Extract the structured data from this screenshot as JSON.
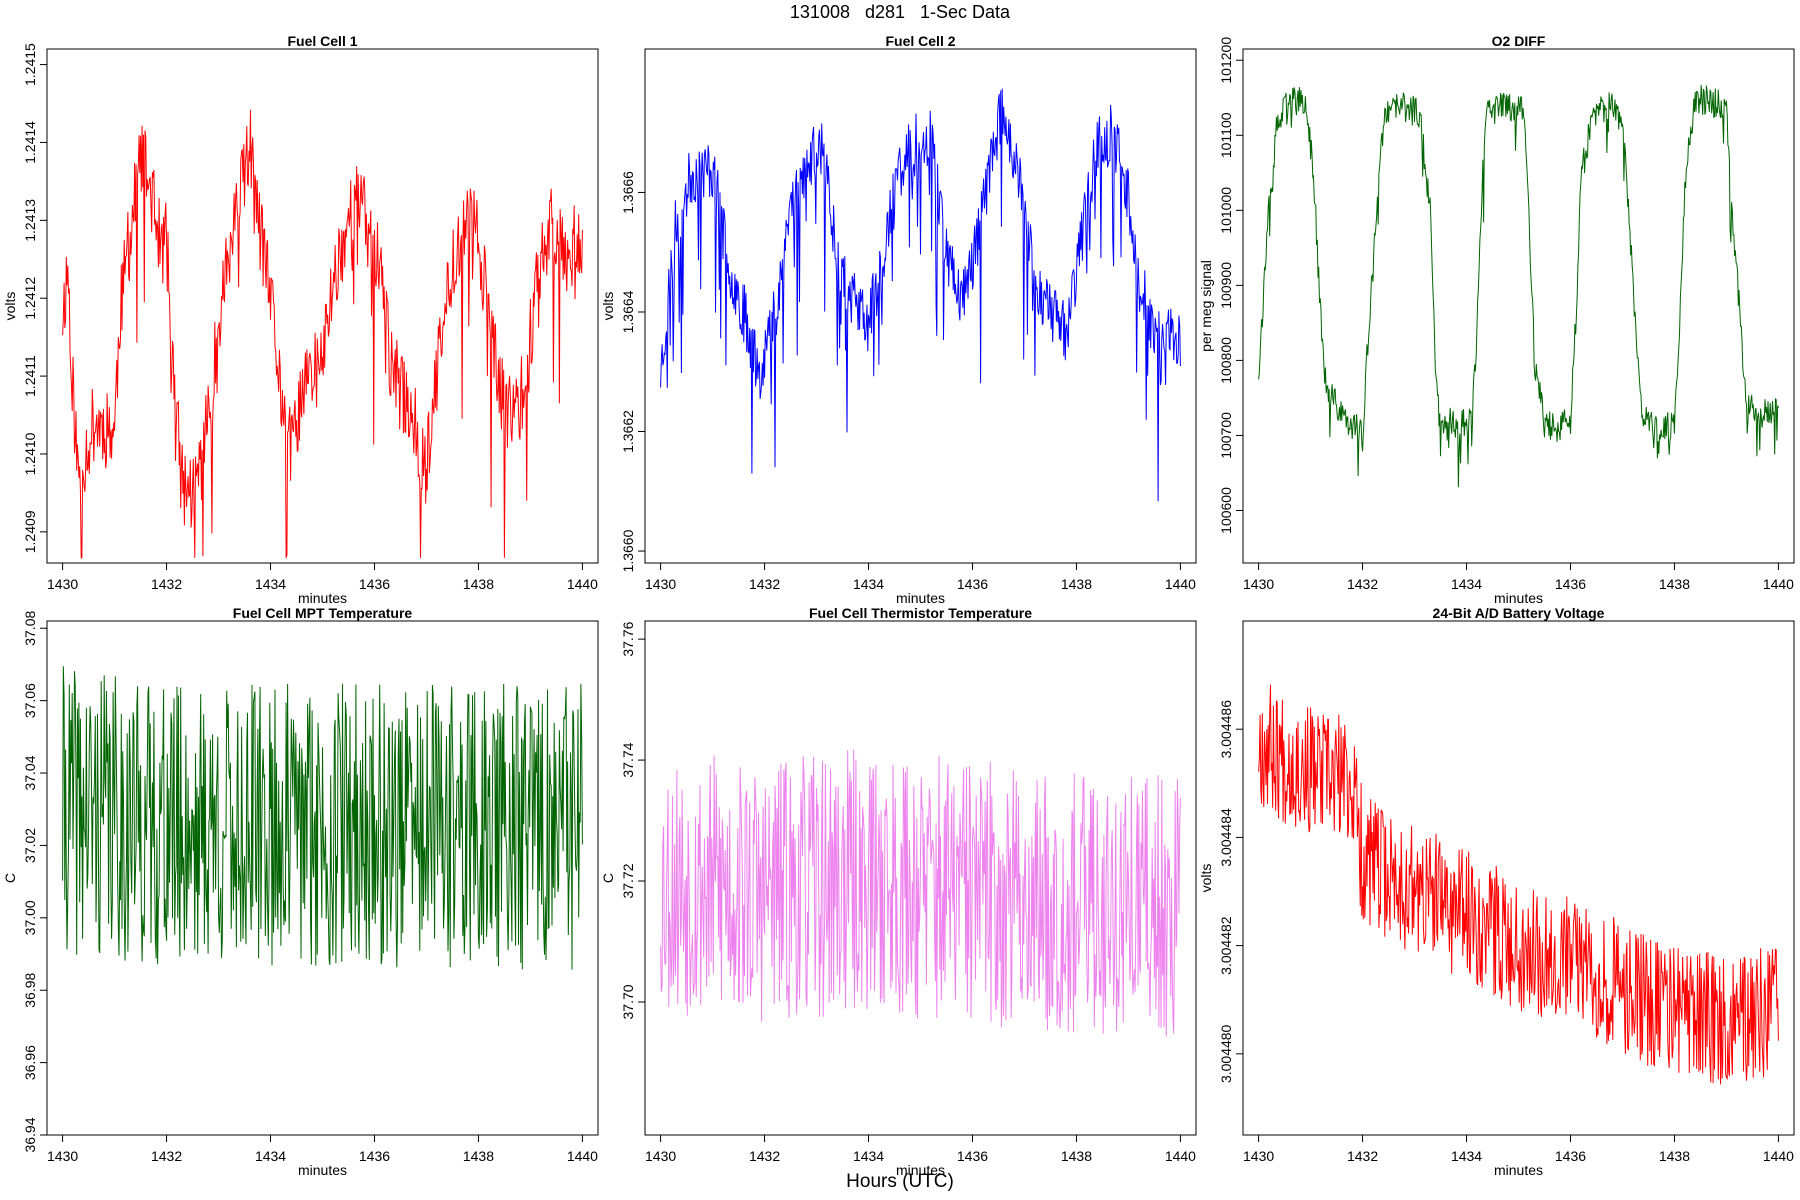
{
  "page": {
    "title": "131008   d281   1-Sec Data",
    "xlabel": "Hours (UTC)"
  },
  "chart_data": [
    {
      "type": "line",
      "title": "Fuel Cell 1",
      "xlabel": "minutes",
      "ylabel": "volts",
      "color": "#ff0000",
      "xlim": [
        1429.7,
        1440.3
      ],
      "ylim": [
        1.24086,
        1.24152
      ],
      "x_ticks": [
        1430,
        1432,
        1434,
        1436,
        1438,
        1440
      ],
      "y_ticks": [
        1.2409,
        1.241,
        1.2411,
        1.2412,
        1.2413,
        1.2414,
        1.2415
      ],
      "y_tick_labels": [
        "1.2409",
        "1.2410",
        "1.2411",
        "1.2412",
        "1.2413",
        "1.2414",
        "1.2415"
      ],
      "series": [
        {
          "name": "Fuel Cell 1",
          "color": "#ff0000",
          "keypoints": [
            [
              1430.0,
              1.24118
            ],
            [
              1430.1,
              1.24124
            ],
            [
              1430.2,
              1.24108
            ],
            [
              1430.3,
              1.24097
            ],
            [
              1430.6,
              1.24104
            ],
            [
              1431.0,
              1.24103
            ],
            [
              1431.1,
              1.24118
            ],
            [
              1431.3,
              1.24128
            ],
            [
              1431.5,
              1.24138
            ],
            [
              1431.7,
              1.24134
            ],
            [
              1431.9,
              1.24126
            ],
            [
              1432.0,
              1.24128
            ],
            [
              1432.1,
              1.24112
            ],
            [
              1432.3,
              1.24096
            ],
            [
              1432.5,
              1.24095
            ],
            [
              1432.7,
              1.241
            ],
            [
              1432.9,
              1.2411
            ],
            [
              1433.1,
              1.24122
            ],
            [
              1433.4,
              1.24132
            ],
            [
              1433.6,
              1.2414
            ],
            [
              1433.8,
              1.24128
            ],
            [
              1434.0,
              1.2412
            ],
            [
              1434.2,
              1.24108
            ],
            [
              1434.4,
              1.241
            ],
            [
              1434.6,
              1.24108
            ],
            [
              1434.8,
              1.2411
            ],
            [
              1435.0,
              1.24112
            ],
            [
              1435.2,
              1.24122
            ],
            [
              1435.5,
              1.2413
            ],
            [
              1435.7,
              1.24133
            ],
            [
              1435.9,
              1.24128
            ],
            [
              1436.1,
              1.24125
            ],
            [
              1436.3,
              1.24112
            ],
            [
              1436.5,
              1.24108
            ],
            [
              1436.7,
              1.24106
            ],
            [
              1436.9,
              1.241
            ],
            [
              1437.0,
              1.24098
            ],
            [
              1437.2,
              1.2411
            ],
            [
              1437.5,
              1.24125
            ],
            [
              1437.8,
              1.2413
            ],
            [
              1438.0,
              1.24128
            ],
            [
              1438.2,
              1.24118
            ],
            [
              1438.4,
              1.24108
            ],
            [
              1438.6,
              1.24105
            ],
            [
              1438.9,
              1.24108
            ],
            [
              1439.1,
              1.24122
            ],
            [
              1439.4,
              1.2413
            ],
            [
              1439.7,
              1.24126
            ],
            [
              1440.0,
              1.24128
            ]
          ]
        }
      ]
    },
    {
      "type": "line",
      "title": "Fuel Cell 2",
      "xlabel": "minutes",
      "ylabel": "volts",
      "color": "#0000ff",
      "xlim": [
        1429.7,
        1440.3
      ],
      "ylim": [
        1.36598,
        1.36684
      ],
      "x_ticks": [
        1430,
        1432,
        1434,
        1436,
        1438,
        1440
      ],
      "y_ticks": [
        1.366,
        1.3662,
        1.3664,
        1.3666
      ],
      "y_tick_labels": [
        "1.3660",
        "1.3662",
        "1.3664",
        "1.3666"
      ],
      "series": [
        {
          "name": "Fuel Cell 2",
          "color": "#0000ff",
          "keypoints": [
            [
              1430.0,
              1.3663
            ],
            [
              1430.3,
              1.36655
            ],
            [
              1430.6,
              1.36663
            ],
            [
              1431.0,
              1.36664
            ],
            [
              1431.3,
              1.36648
            ],
            [
              1431.6,
              1.3664
            ],
            [
              1431.9,
              1.3663
            ],
            [
              1432.2,
              1.3664
            ],
            [
              1432.5,
              1.36658
            ],
            [
              1432.8,
              1.36664
            ],
            [
              1433.1,
              1.36668
            ],
            [
              1433.4,
              1.3665
            ],
            [
              1433.7,
              1.36642
            ],
            [
              1434.0,
              1.36638
            ],
            [
              1434.3,
              1.3665
            ],
            [
              1434.6,
              1.36664
            ],
            [
              1434.9,
              1.36668
            ],
            [
              1435.2,
              1.3667
            ],
            [
              1435.5,
              1.3665
            ],
            [
              1435.8,
              1.36642
            ],
            [
              1436.1,
              1.36652
            ],
            [
              1436.4,
              1.36668
            ],
            [
              1436.6,
              1.36674
            ],
            [
              1436.9,
              1.36662
            ],
            [
              1437.2,
              1.36645
            ],
            [
              1437.5,
              1.3664
            ],
            [
              1437.8,
              1.36637
            ],
            [
              1438.1,
              1.36652
            ],
            [
              1438.4,
              1.36668
            ],
            [
              1438.7,
              1.3667
            ],
            [
              1439.0,
              1.3666
            ],
            [
              1439.2,
              1.36645
            ],
            [
              1439.5,
              1.36637
            ],
            [
              1439.8,
              1.36636
            ],
            [
              1440.0,
              1.36636
            ]
          ]
        }
      ]
    },
    {
      "type": "line",
      "title": "O2 DIFF",
      "xlabel": "minutes",
      "ylabel": "per meg signal",
      "color": "#006400",
      "xlim": [
        1429.7,
        1440.3
      ],
      "ylim": [
        100530,
        101215
      ],
      "x_ticks": [
        1430,
        1432,
        1434,
        1436,
        1438,
        1440
      ],
      "y_ticks": [
        100600,
        100700,
        100800,
        100900,
        101000,
        101100,
        101200
      ],
      "y_tick_labels": [
        "100600",
        "100700",
        "100800",
        "100900",
        "101000",
        "101100",
        "101200"
      ],
      "series": [
        {
          "name": "O2 DIFF",
          "color": "#006400",
          "keypoints": [
            [
              1430.0,
              100785
            ],
            [
              1430.2,
              101000
            ],
            [
              1430.35,
              101110
            ],
            [
              1430.6,
              101150
            ],
            [
              1430.9,
              101140
            ],
            [
              1431.05,
              101060
            ],
            [
              1431.2,
              100850
            ],
            [
              1431.3,
              100760
            ],
            [
              1431.6,
              100730
            ],
            [
              1432.0,
              100700
            ],
            [
              1432.1,
              100820
            ],
            [
              1432.3,
              101020
            ],
            [
              1432.4,
              101120
            ],
            [
              1432.7,
              101140
            ],
            [
              1433.1,
              101130
            ],
            [
              1433.3,
              101000
            ],
            [
              1433.4,
              100800
            ],
            [
              1433.5,
              100720
            ],
            [
              1433.8,
              100715
            ],
            [
              1434.1,
              100720
            ],
            [
              1434.2,
              100830
            ],
            [
              1434.3,
              101040
            ],
            [
              1434.4,
              101130
            ],
            [
              1434.7,
              101140
            ],
            [
              1435.1,
              101135
            ],
            [
              1435.2,
              101010
            ],
            [
              1435.3,
              100810
            ],
            [
              1435.5,
              100715
            ],
            [
              1435.8,
              100710
            ],
            [
              1436.0,
              100720
            ],
            [
              1436.1,
              100850
            ],
            [
              1436.2,
              101040
            ],
            [
              1436.4,
              101120
            ],
            [
              1436.7,
              101140
            ],
            [
              1437.0,
              101130
            ],
            [
              1437.1,
              101020
            ],
            [
              1437.3,
              100800
            ],
            [
              1437.4,
              100720
            ],
            [
              1437.8,
              100705
            ],
            [
              1438.0,
              100720
            ],
            [
              1438.1,
              100850
            ],
            [
              1438.2,
              101040
            ],
            [
              1438.4,
              101150
            ],
            [
              1438.7,
              101145
            ],
            [
              1439.0,
              101140
            ],
            [
              1439.1,
              101010
            ],
            [
              1439.3,
              100820
            ],
            [
              1439.4,
              100740
            ],
            [
              1439.7,
              100730
            ],
            [
              1440.0,
              100740
            ]
          ]
        }
      ]
    },
    {
      "type": "line",
      "title": "Fuel Cell MPT Temperature",
      "xlabel": "minutes",
      "ylabel": "C",
      "color": "#006400",
      "xlim": [
        1429.7,
        1440.3
      ],
      "ylim": [
        36.94,
        37.082
      ],
      "x_ticks": [
        1430,
        1432,
        1434,
        1436,
        1438,
        1440
      ],
      "y_ticks": [
        36.94,
        36.96,
        36.98,
        37.0,
        37.02,
        37.04,
        37.06,
        37.08
      ],
      "y_tick_labels": [
        "36.94",
        "36.96",
        "36.98",
        "37.00",
        "37.02",
        "37.04",
        "37.06",
        "37.08"
      ],
      "series": [
        {
          "name": "Fuel Cell MPT Temperature",
          "color": "#006400",
          "keypoints": [
            [
              1430.0,
              37.03
            ],
            [
              1432.0,
              37.025
            ],
            [
              1434.0,
              37.025
            ],
            [
              1436.0,
              37.025
            ],
            [
              1438.0,
              37.025
            ],
            [
              1440.0,
              37.025
            ]
          ]
        }
      ]
    },
    {
      "type": "line",
      "title": "Fuel Cell Thermistor Temperature",
      "xlabel": "minutes",
      "ylabel": "C",
      "color": "#ee82ee",
      "xlim": [
        1429.7,
        1440.3
      ],
      "ylim": [
        37.678,
        37.763
      ],
      "x_ticks": [
        1430,
        1432,
        1434,
        1436,
        1438,
        1440
      ],
      "y_ticks": [
        37.7,
        37.72,
        37.74,
        37.76
      ],
      "y_tick_labels": [
        "37.70",
        "37.72",
        "37.74",
        "37.76"
      ],
      "series": [
        {
          "name": "Fuel Cell Thermistor Temperature",
          "color": "#ee82ee",
          "keypoints": [
            [
              1430.0,
              37.72
            ],
            [
              1432.0,
              37.718
            ],
            [
              1434.0,
              37.72
            ],
            [
              1436.0,
              37.718
            ],
            [
              1438.0,
              37.716
            ],
            [
              1440.0,
              37.716
            ]
          ]
        }
      ]
    },
    {
      "type": "line",
      "title": "24-Bit A/D Battery Voltage",
      "xlabel": "minutes",
      "ylabel": "volts",
      "color": "#ff0000",
      "xlim": [
        1429.7,
        1440.3
      ],
      "ylim": [
        3.0044785,
        3.004488
      ],
      "x_ticks": [
        1430,
        1432,
        1434,
        1436,
        1438,
        1440
      ],
      "y_ticks": [
        3.00448,
        3.004482,
        3.004484,
        3.004486
      ],
      "y_tick_labels": [
        "3.004480",
        "3.004482",
        "3.004484",
        "3.004486"
      ],
      "series": [
        {
          "name": "24-Bit A/D Battery Voltage",
          "color": "#ff0000",
          "keypoints": [
            [
              1430.0,
              3.0044858
            ],
            [
              1431.0,
              3.0044852
            ],
            [
              1431.8,
              3.004485
            ],
            [
              1432.0,
              3.0044836
            ],
            [
              1433.0,
              3.004483
            ],
            [
              1434.0,
              3.0044826
            ],
            [
              1435.0,
              3.004482
            ],
            [
              1436.0,
              3.0044818
            ],
            [
              1437.0,
              3.0044812
            ],
            [
              1438.0,
              3.0044808
            ],
            [
              1439.0,
              3.0044806
            ],
            [
              1440.0,
              3.0044808
            ]
          ]
        }
      ]
    }
  ]
}
